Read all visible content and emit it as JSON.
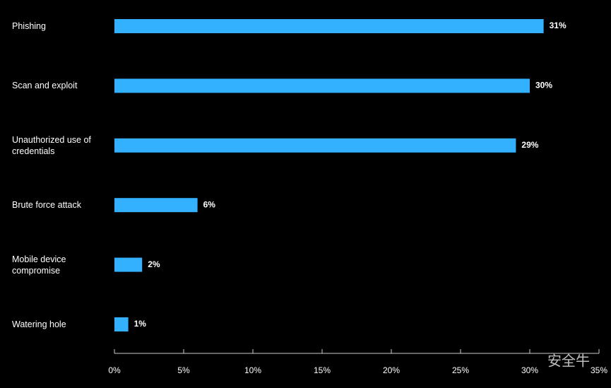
{
  "chart_data": {
    "type": "bar",
    "orientation": "horizontal",
    "categories": [
      "Phishing",
      "Scan and exploit",
      "Unauthorized use of credentials",
      "Brute force attack",
      "Mobile device compromise",
      "Watering hole"
    ],
    "values": [
      31,
      30,
      29,
      6,
      2,
      1
    ],
    "value_labels": [
      "31%",
      "30%",
      "29%",
      "6%",
      "2%",
      "1%"
    ],
    "color": "#33b1ff",
    "xlim": [
      0,
      35
    ],
    "xticks": [
      {
        "value": 0,
        "label": "0%"
      },
      {
        "value": 5,
        "label": "5%"
      },
      {
        "value": 10,
        "label": "10%"
      },
      {
        "value": 15,
        "label": "15%"
      },
      {
        "value": 20,
        "label": "20%"
      },
      {
        "value": 25,
        "label": "25%"
      },
      {
        "value": 30,
        "label": "30%"
      },
      {
        "value": 35,
        "label": "35%"
      }
    ],
    "watermark": "安全牛"
  }
}
